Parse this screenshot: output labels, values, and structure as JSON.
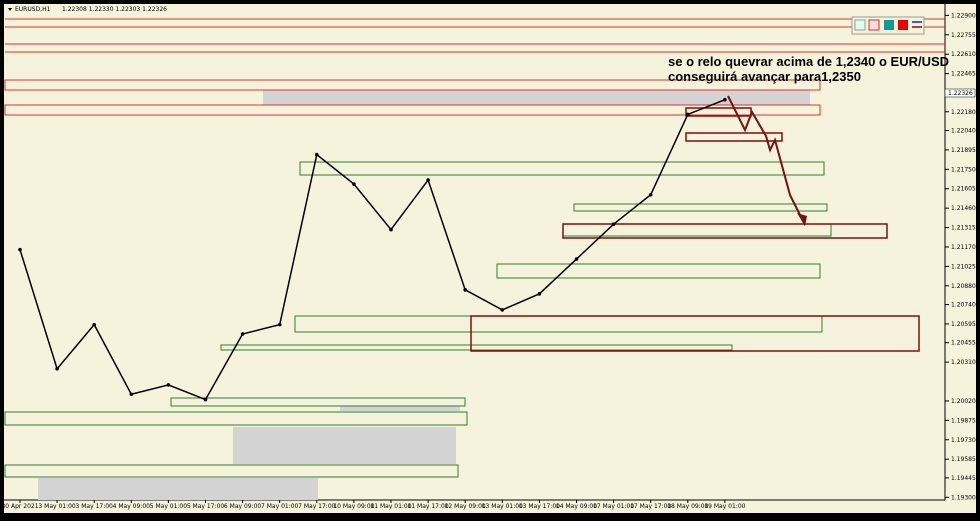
{
  "chart_data": {
    "type": "line",
    "title": "EURUSD,H1",
    "subtitle": "1.22308 1.22330 1.22303 1.22326",
    "price_label": "1.22326",
    "annotations": [
      "se o relo quevrar acima de 1,2340 o EUR/USD",
      "conseguirá avançar para1,2350"
    ],
    "categories": [
      "30 Apr 2021",
      "3 May 01:00",
      "3 May 17:00",
      "4 May 09:00",
      "5 May 01:00",
      "5 May 17:00",
      "6 May 09:00",
      "7 May 01:00",
      "7 May 17:00",
      "10 May 09:00",
      "11 May 01:00",
      "11 May 17:00",
      "12 May 09:00",
      "13 May 01:00",
      "13 May 17:00",
      "14 May 09:00",
      "17 May 01:00",
      "17 May 17:00",
      "18 May 09:00",
      "19 May 01:00"
    ],
    "series": [
      {
        "color": "#000000",
        "values": [
          1.2115,
          1.2026,
          1.2059,
          1.2007,
          1.2014,
          1.2003,
          1.2052,
          1.2059,
          1.2186,
          1.2164,
          1.213,
          1.2167,
          1.2085,
          1.207,
          1.2082,
          1.2108,
          1.2134,
          1.2156,
          1.2216,
          1.2227
        ]
      }
    ],
    "ylim": [
      1.1928,
      1.2297
    ],
    "yticks": [
      {
        "value": 1.229,
        "label": "1.22900"
      },
      1.22755,
      {
        "value": 1.2261,
        "label": "1.22610"
      },
      1.22465,
      {
        "value": 1.2218,
        "label": "1.22180"
      },
      {
        "value": 1.2204,
        "label": "1.22040"
      },
      1.21895,
      {
        "value": 1.2175,
        "label": "1.21750"
      },
      1.21605,
      {
        "value": 1.2146,
        "label": "1.21460"
      },
      1.21315,
      {
        "value": 1.2117,
        "label": "1.21170"
      },
      1.21025,
      {
        "value": 1.2088,
        "label": "1.20880"
      },
      {
        "value": 1.2074,
        "label": "1.20740"
      },
      1.20595,
      1.20455,
      {
        "value": 1.2031,
        "label": "1.20310"
      },
      {
        "value": 1.2002,
        "label": "1.20020"
      },
      1.19875,
      {
        "value": 1.1973,
        "label": "1.19730"
      },
      1.19585,
      1.19445,
      {
        "value": 1.193,
        "label": "1.19300"
      }
    ],
    "grid": false
  }
}
